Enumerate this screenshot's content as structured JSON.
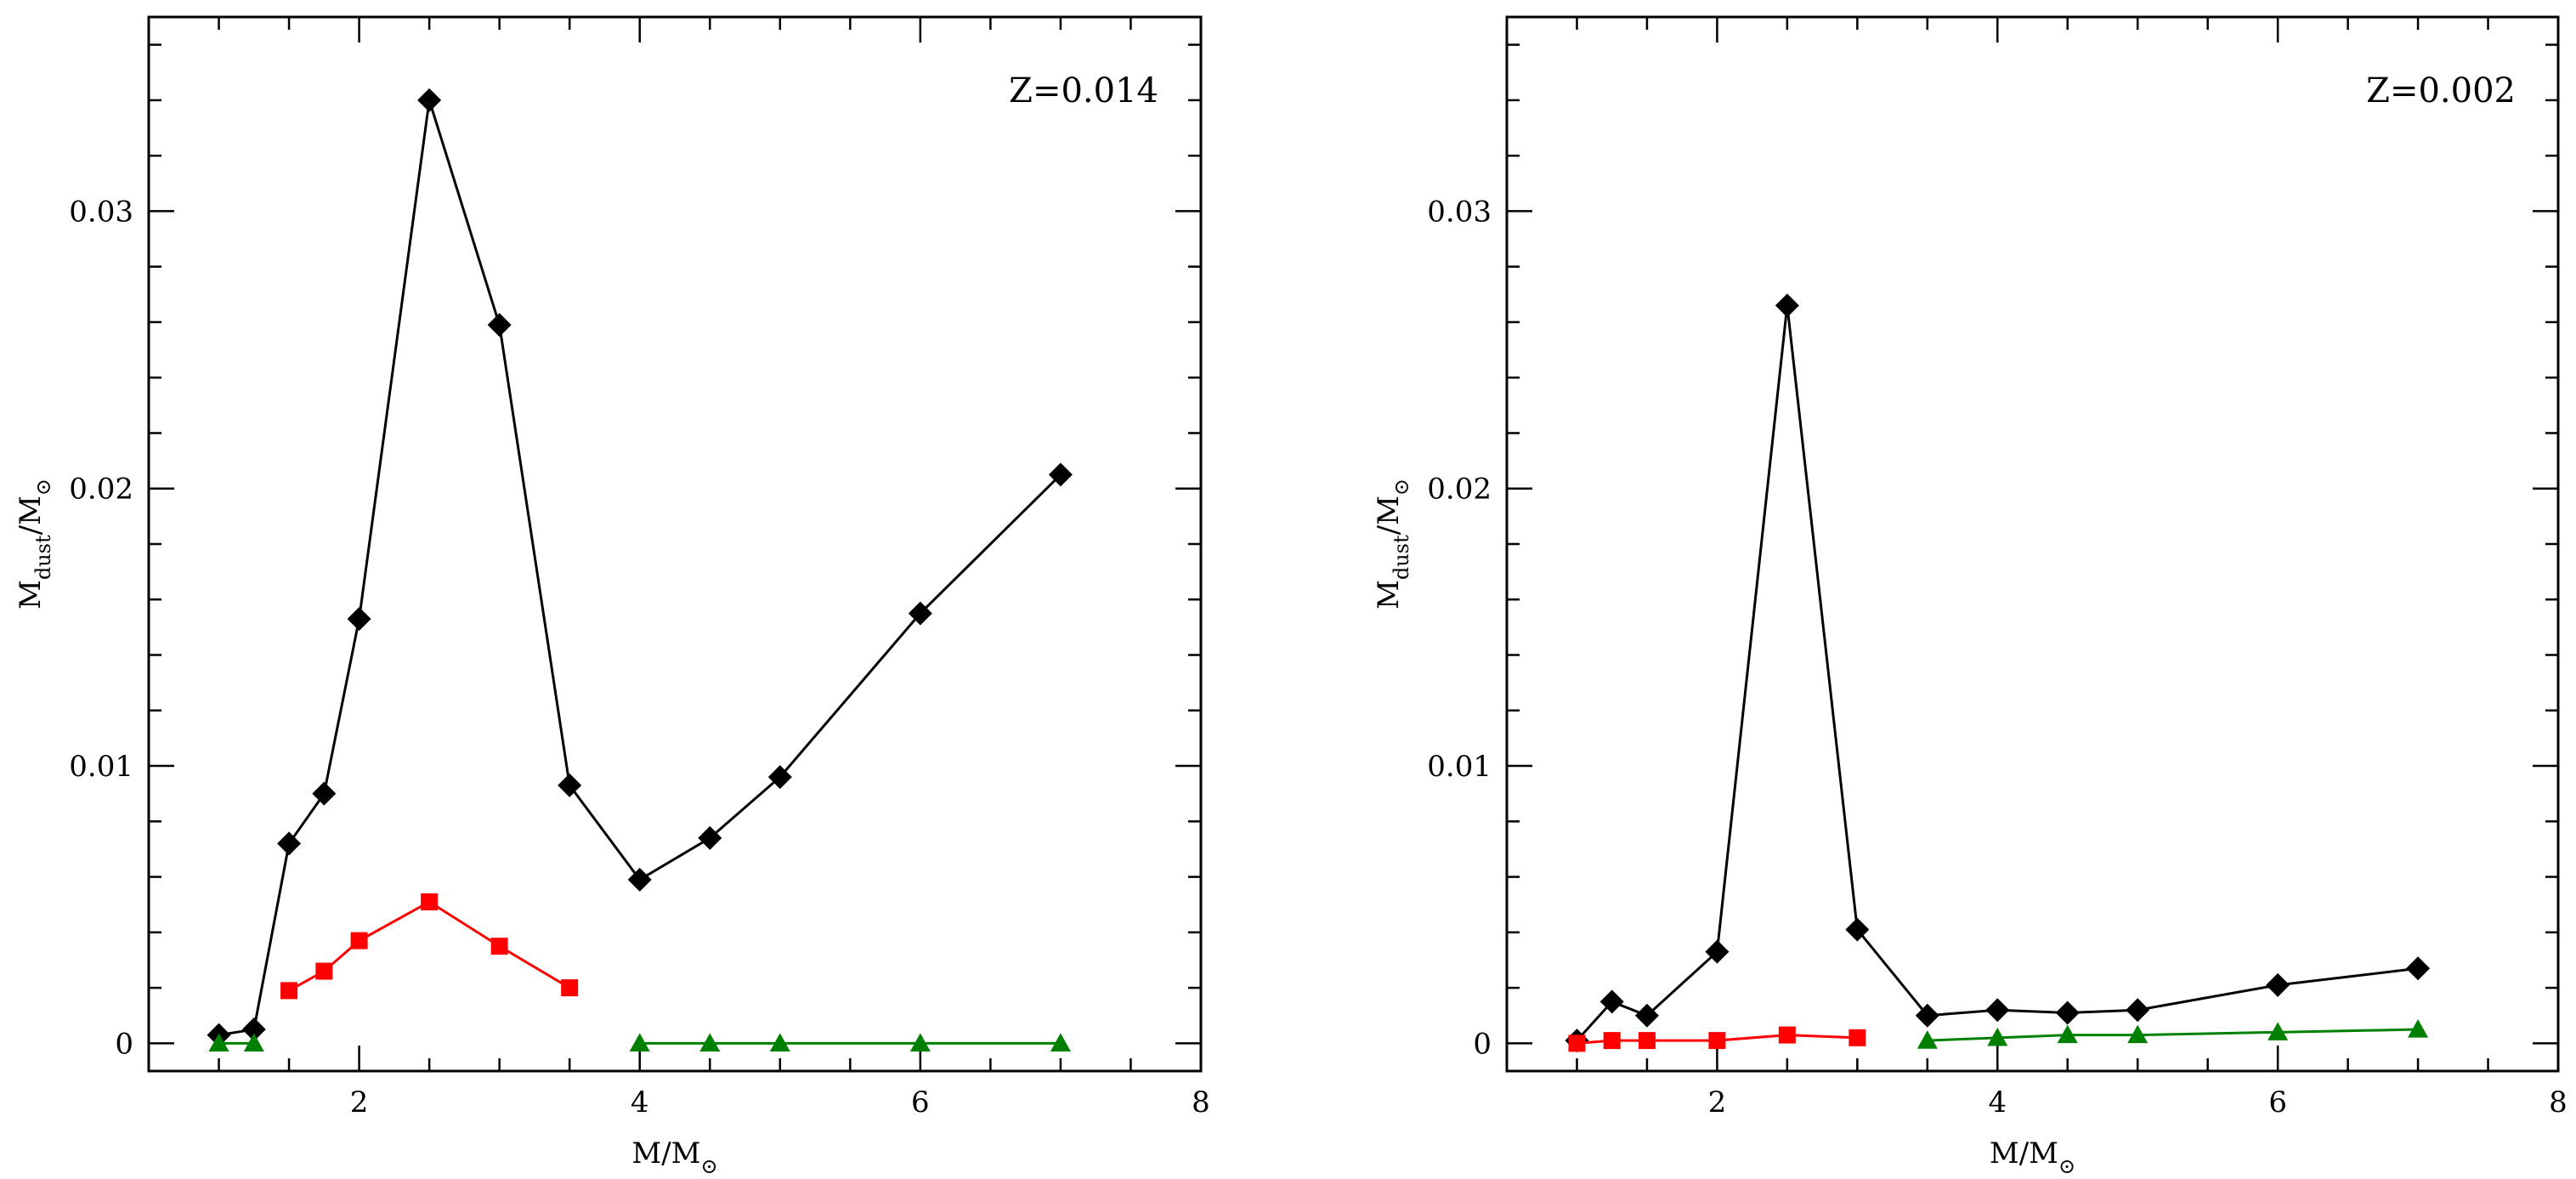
{
  "chart_data": [
    {
      "type": "line",
      "annotation": "Z=0.014",
      "xlabel": {
        "main": "M/M",
        "sub": "⊙"
      },
      "ylabel": {
        "main": "M",
        "sub1": "dust",
        "mid": "/M",
        "sub2": "⊙"
      },
      "xlim": [
        0.5,
        8
      ],
      "ylim": [
        -0.001,
        0.037
      ],
      "x_ticks": [
        2,
        4,
        6,
        8
      ],
      "x_tick_labels": [
        "2",
        "4",
        "6",
        "8"
      ],
      "y_ticks": [
        0,
        0.01,
        0.02,
        0.03
      ],
      "y_tick_labels": [
        "0",
        "0.01",
        "0.02",
        "0.03"
      ],
      "series": [
        {
          "name": "black",
          "color": "#000000",
          "marker": "diamond",
          "x": [
            1.0,
            1.25,
            1.5,
            1.75,
            2.0,
            2.5,
            3.0,
            3.5,
            4.0,
            4.5,
            5.0,
            6.0,
            7.0
          ],
          "y": [
            0.0003,
            0.0005,
            0.0072,
            0.009,
            0.0153,
            0.034,
            0.0259,
            0.0093,
            0.0059,
            0.0074,
            0.0096,
            0.0155,
            0.0205
          ]
        },
        {
          "name": "red",
          "color": "#ff0000",
          "marker": "square",
          "x": [
            1.5,
            1.75,
            2.0,
            2.5,
            3.0,
            3.5
          ],
          "y": [
            0.0019,
            0.0026,
            0.0037,
            0.0051,
            0.0035,
            0.002
          ]
        },
        {
          "name": "green-low",
          "color": "#008000",
          "marker": "triangle",
          "x": [
            1.0,
            1.25
          ],
          "y": [
            0.0,
            0.0
          ]
        },
        {
          "name": "green",
          "color": "#008000",
          "marker": "triangle",
          "x": [
            4.0,
            4.5,
            5.0,
            6.0,
            7.0
          ],
          "y": [
            0.0,
            0.0,
            0.0,
            0.0,
            0.0
          ]
        }
      ]
    },
    {
      "type": "line",
      "annotation": "Z=0.002",
      "xlabel": {
        "main": "M/M",
        "sub": "⊙"
      },
      "ylabel": {
        "main": "M",
        "sub1": "dust",
        "mid": "/M",
        "sub2": "⊙"
      },
      "xlim": [
        0.5,
        8
      ],
      "ylim": [
        -0.001,
        0.037
      ],
      "x_ticks": [
        2,
        4,
        6,
        8
      ],
      "x_tick_labels": [
        "2",
        "4",
        "6",
        "8"
      ],
      "y_ticks": [
        0,
        0.01,
        0.02,
        0.03
      ],
      "y_tick_labels": [
        "0",
        "0.01",
        "0.02",
        "0.03"
      ],
      "series": [
        {
          "name": "black",
          "color": "#000000",
          "marker": "diamond",
          "x": [
            1.0,
            1.25,
            1.5,
            2.0,
            2.5,
            3.0,
            3.5,
            4.0,
            4.5,
            5.0,
            6.0,
            7.0
          ],
          "y": [
            0.0001,
            0.0015,
            0.001,
            0.0033,
            0.0266,
            0.0041,
            0.001,
            0.0012,
            0.0011,
            0.0012,
            0.0021,
            0.0027
          ]
        },
        {
          "name": "red",
          "color": "#ff0000",
          "marker": "square",
          "x": [
            1.0,
            1.25,
            1.5,
            2.0,
            2.5,
            3.0
          ],
          "y": [
            0.0,
            0.0001,
            0.0001,
            0.0001,
            0.0003,
            0.0002
          ]
        },
        {
          "name": "green",
          "color": "#008000",
          "marker": "triangle",
          "x": [
            3.5,
            4.0,
            4.5,
            5.0,
            6.0,
            7.0
          ],
          "y": [
            0.0001,
            0.0002,
            0.0003,
            0.0003,
            0.0004,
            0.0005
          ]
        }
      ]
    }
  ]
}
